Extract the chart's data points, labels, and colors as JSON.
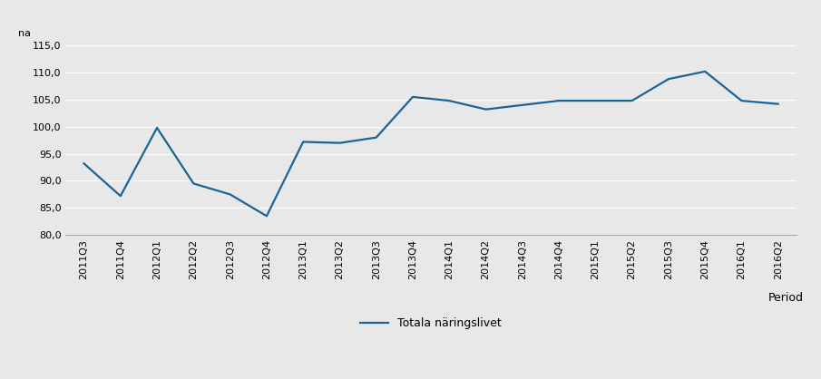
{
  "x_labels": [
    "2011Q3",
    "2011Q4",
    "2012Q1",
    "2012Q2",
    "2012Q3",
    "2012Q4",
    "2013Q1",
    "2013Q2",
    "2013Q3",
    "2013Q4",
    "2014Q1",
    "2014Q2",
    "2014Q3",
    "2014Q4",
    "2015Q1",
    "2015Q2",
    "2015Q3",
    "2015Q4",
    "2016Q1",
    "2016Q2"
  ],
  "y_values": [
    93.2,
    87.2,
    99.8,
    89.5,
    87.5,
    83.5,
    97.2,
    97.0,
    98.0,
    105.5,
    104.8,
    103.2,
    104.0,
    104.8,
    104.8,
    104.8,
    108.8,
    110.2,
    104.8,
    104.2
  ],
  "line_color": "#1a6496",
  "line_width": 1.6,
  "bg_color": "#e8e8e8",
  "plot_bg_color": "#e8e8e8",
  "ylim": [
    80.0,
    115.0
  ],
  "yticks": [
    80.0,
    85.0,
    90.0,
    95.0,
    100.0,
    105.0,
    110.0,
    115.0
  ],
  "ylabel_text": "na",
  "xlabel_text": "Period",
  "legend_label": "Totala näringslivet",
  "grid_color": "#ffffff",
  "tick_fontsize": 8,
  "label_fontsize": 9
}
